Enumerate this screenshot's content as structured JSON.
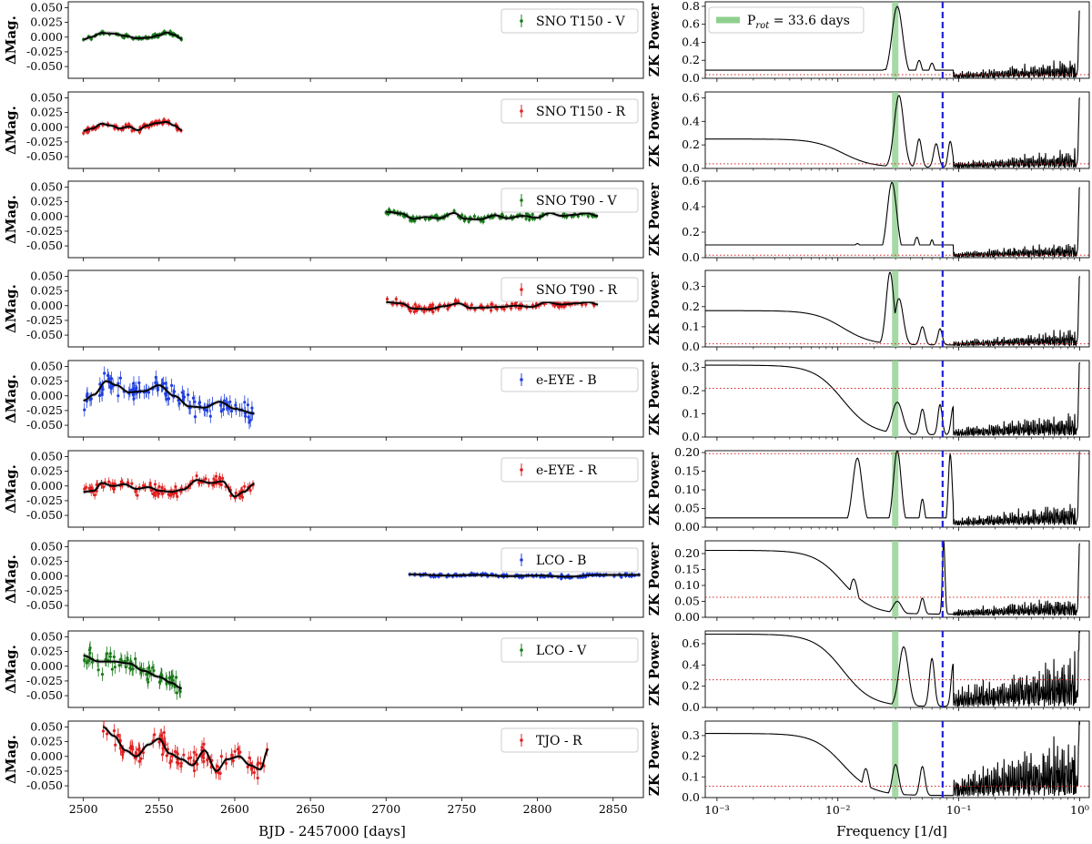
{
  "chart_data": {
    "type": "multi-panel: light curves (scatter with error bars + model line) and ZK periodograms (line)",
    "left_column": {
      "xlabel": "BJD - 2457000 [days]",
      "ylabel": "ΔMag.",
      "xlim": [
        2490,
        2870
      ],
      "ylim": [
        -0.07,
        0.06
      ],
      "xticks": [
        "2500",
        "2550",
        "2600",
        "2650",
        "2700",
        "2750",
        "2800",
        "2850"
      ],
      "yticks": [
        "0.050",
        "0.025",
        "0.000",
        "-0.025",
        "-0.050"
      ],
      "grid": false,
      "panels": [
        {
          "legend": "SNO T150 - V",
          "color": "#1a7a1a",
          "range": [
            2500,
            2565
          ],
          "amp": 0.008,
          "noise": 0.002,
          "model": [
            [
              2500,
              -0.004
            ],
            [
              2505,
              0.0
            ],
            [
              2512,
              0.007
            ],
            [
              2520,
              0.006
            ],
            [
              2528,
              0.002
            ],
            [
              2535,
              -0.002
            ],
            [
              2543,
              -0.001
            ],
            [
              2550,
              0.003
            ],
            [
              2555,
              0.008
            ],
            [
              2560,
              0.004
            ],
            [
              2565,
              -0.003
            ]
          ]
        },
        {
          "legend": "SNO T150 - R",
          "color": "#e02020",
          "range": [
            2500,
            2565
          ],
          "amp": 0.008,
          "noise": 0.003,
          "model": [
            [
              2500,
              -0.006
            ],
            [
              2506,
              -0.002
            ],
            [
              2512,
              0.006
            ],
            [
              2518,
              0.003
            ],
            [
              2524,
              -0.002
            ],
            [
              2530,
              0.001
            ],
            [
              2536,
              -0.005
            ],
            [
              2542,
              0.003
            ],
            [
              2548,
              0.007
            ],
            [
              2555,
              0.009
            ],
            [
              2560,
              0.003
            ],
            [
              2565,
              -0.005
            ]
          ]
        },
        {
          "legend": "SNO T90 - V",
          "color": "#1a7a1a",
          "range": [
            2700,
            2840
          ],
          "amp": 0.006,
          "noise": 0.003,
          "model": [
            [
              2700,
              0.008
            ],
            [
              2710,
              0.005
            ],
            [
              2718,
              -0.004
            ],
            [
              2726,
              -0.001
            ],
            [
              2735,
              -0.003
            ],
            [
              2745,
              0.006
            ],
            [
              2752,
              -0.004
            ],
            [
              2762,
              -0.005
            ],
            [
              2772,
              0.002
            ],
            [
              2780,
              -0.003
            ],
            [
              2790,
              0.001
            ],
            [
              2800,
              -0.002
            ],
            [
              2808,
              0.006
            ],
            [
              2816,
              0.001
            ],
            [
              2825,
              0.003
            ],
            [
              2832,
              0.006
            ],
            [
              2840,
              0.001
            ]
          ]
        },
        {
          "legend": "SNO T90 - R",
          "color": "#e02020",
          "range": [
            2700,
            2840
          ],
          "amp": 0.006,
          "noise": 0.004,
          "model": [
            [
              2700,
              0.006
            ],
            [
              2710,
              0.004
            ],
            [
              2718,
              -0.005
            ],
            [
              2728,
              -0.006
            ],
            [
              2738,
              -0.001
            ],
            [
              2748,
              0.004
            ],
            [
              2756,
              -0.004
            ],
            [
              2766,
              -0.003
            ],
            [
              2776,
              -0.002
            ],
            [
              2786,
              0.0
            ],
            [
              2796,
              -0.002
            ],
            [
              2806,
              0.006
            ],
            [
              2816,
              0.002
            ],
            [
              2826,
              0.004
            ],
            [
              2834,
              0.006
            ],
            [
              2840,
              0.002
            ]
          ]
        },
        {
          "legend": "e-EYE - B",
          "color": "#1f3fe0",
          "range": [
            2500,
            2613
          ],
          "amp": 0.02,
          "noise": 0.012,
          "model": [
            [
              2500,
              -0.008
            ],
            [
              2507,
              0.002
            ],
            [
              2515,
              0.025
            ],
            [
              2522,
              0.018
            ],
            [
              2530,
              0.006
            ],
            [
              2540,
              0.008
            ],
            [
              2550,
              0.018
            ],
            [
              2560,
              0.0
            ],
            [
              2570,
              -0.018
            ],
            [
              2580,
              -0.02
            ],
            [
              2590,
              -0.01
            ],
            [
              2600,
              -0.022
            ],
            [
              2613,
              -0.03
            ]
          ]
        },
        {
          "legend": "e-EYE - R",
          "color": "#e02020",
          "range": [
            2500,
            2613
          ],
          "amp": 0.015,
          "noise": 0.007,
          "model": [
            [
              2500,
              -0.01
            ],
            [
              2507,
              -0.008
            ],
            [
              2512,
              0.005
            ],
            [
              2520,
              0.0
            ],
            [
              2527,
              0.003
            ],
            [
              2535,
              -0.005
            ],
            [
              2543,
              -0.002
            ],
            [
              2550,
              -0.008
            ],
            [
              2558,
              -0.01
            ],
            [
              2566,
              -0.006
            ],
            [
              2575,
              0.01
            ],
            [
              2584,
              0.005
            ],
            [
              2592,
              0.008
            ],
            [
              2600,
              -0.018
            ],
            [
              2606,
              -0.01
            ],
            [
              2613,
              0.004
            ]
          ]
        },
        {
          "legend": "LCO - B",
          "color": "#1f3fe0",
          "range": [
            2715,
            2868
          ],
          "amp": 0.003,
          "noise": 0.002,
          "model": [
            [
              2715,
              0.003
            ],
            [
              2740,
              0.001
            ],
            [
              2760,
              0.002
            ],
            [
              2780,
              0.0
            ],
            [
              2800,
              0.001
            ],
            [
              2820,
              -0.001
            ],
            [
              2840,
              0.002
            ],
            [
              2868,
              0.002
            ]
          ]
        },
        {
          "legend": "LCO - V",
          "color": "#1a7a1a",
          "range": [
            2500,
            2565
          ],
          "amp": 0.02,
          "noise": 0.012,
          "model": [
            [
              2500,
              0.018
            ],
            [
              2510,
              0.008
            ],
            [
              2520,
              0.008
            ],
            [
              2530,
              0.005
            ],
            [
              2540,
              -0.008
            ],
            [
              2550,
              -0.018
            ],
            [
              2558,
              -0.028
            ],
            [
              2565,
              -0.038
            ]
          ]
        },
        {
          "legend": "TJO - R",
          "color": "#e02020",
          "range": [
            2513,
            2622
          ],
          "amp": 0.025,
          "noise": 0.012,
          "model": [
            [
              2513,
              0.05
            ],
            [
              2520,
              0.035
            ],
            [
              2528,
              0.01
            ],
            [
              2535,
              0.0
            ],
            [
              2543,
              0.02
            ],
            [
              2550,
              0.03
            ],
            [
              2557,
              0.005
            ],
            [
              2565,
              -0.005
            ],
            [
              2572,
              -0.015
            ],
            [
              2580,
              0.01
            ],
            [
              2588,
              -0.025
            ],
            [
              2595,
              -0.005
            ],
            [
              2603,
              0.0
            ],
            [
              2610,
              -0.015
            ],
            [
              2617,
              -0.022
            ],
            [
              2622,
              0.012
            ]
          ]
        }
      ]
    },
    "right_column": {
      "xlabel": "Frequency [1/d]",
      "ylabel": "ZK Power",
      "xscale": "log",
      "xlim": [
        0.0008,
        1.2
      ],
      "xticks": [
        "10⁻³",
        "10⁻²",
        "10⁻¹",
        "10⁰"
      ],
      "rotation_period_band": {
        "label": "P",
        "label_sub": "rot",
        "label_rest": " = 33.6 days",
        "frequency": 0.0298,
        "color": "#8fd08f"
      },
      "dashed_line_frequency": 0.0735,
      "dashed_color": "#2222dd",
      "threshold_color": "#d62020",
      "panels": [
        {
          "ylim": [
            0,
            0.85
          ],
          "yticks": [
            "0.0",
            "0.2",
            "0.4",
            "0.6",
            "0.8"
          ],
          "threshold": 0.04,
          "base": 0.09,
          "peaks": [
            [
              0.0245,
              0.08,
              0.22
            ],
            [
              0.031,
              0.78,
              0.25
            ],
            [
              0.047,
              0.18,
              0.12
            ],
            [
              0.06,
              0.15,
              0.12
            ]
          ],
          "noise": 0.2,
          "end": 0.75
        },
        {
          "ylim": [
            0,
            0.65
          ],
          "yticks": [
            "0.0",
            "0.2",
            "0.4",
            "0.6"
          ],
          "threshold": 0.04,
          "base": 0.24,
          "drop": true,
          "peaks": [
            [
              0.032,
              0.61,
              0.22
            ],
            [
              0.047,
              0.24,
              0.12
            ],
            [
              0.065,
              0.2,
              0.12
            ],
            [
              0.085,
              0.22,
              0.1
            ]
          ],
          "noise": 0.15,
          "end": 0.6
        },
        {
          "ylim": [
            0,
            0.6
          ],
          "yticks": [
            "0.0",
            "0.2",
            "0.4",
            "0.6"
          ],
          "threshold": 0.02,
          "base": 0.1,
          "peaks": [
            [
              0.0145,
              0.09,
              0.2
            ],
            [
              0.028,
              0.57,
              0.22
            ],
            [
              0.045,
              0.14,
              0.12
            ],
            [
              0.06,
              0.12,
              0.1
            ]
          ],
          "noise": 0.12,
          "end": 0.55
        },
        {
          "ylim": [
            0,
            0.38
          ],
          "yticks": [
            "0.0",
            "0.1",
            "0.2",
            "0.3"
          ],
          "threshold": 0.015,
          "base": 0.17,
          "drop": true,
          "peaks": [
            [
              0.027,
              0.36,
              0.18
            ],
            [
              0.032,
              0.23,
              0.2
            ],
            [
              0.05,
              0.09,
              0.12
            ],
            [
              0.07,
              0.08,
              0.1
            ]
          ],
          "noise": 0.08,
          "end": 0.35
        },
        {
          "ylim": [
            0,
            0.33
          ],
          "yticks": [
            "0.0",
            "0.1",
            "0.2",
            "0.3"
          ],
          "threshold": 0.21,
          "base": 0.3,
          "drop": true,
          "peaks": [
            [
              0.031,
              0.14,
              0.25
            ],
            [
              0.05,
              0.11,
              0.12
            ],
            [
              0.07,
              0.13,
              0.1
            ],
            [
              0.09,
              0.12,
              0.1
            ]
          ],
          "noise": 0.1,
          "end": 0.32
        },
        {
          "ylim": [
            0,
            0.205
          ],
          "yticks": [
            "0.00",
            "0.05",
            "0.10",
            "0.15",
            "0.20"
          ],
          "threshold": 0.197,
          "base": 0.025,
          "peaks": [
            [
              0.0145,
              0.18,
              0.22
            ],
            [
              0.031,
              0.2,
              0.18
            ],
            [
              0.05,
              0.07,
              0.1
            ],
            [
              0.085,
              0.19,
              0.09
            ]
          ],
          "noise": 0.06,
          "end": 0.2
        },
        {
          "ylim": [
            0,
            0.24
          ],
          "yticks": [
            "0.00",
            "0.05",
            "0.10",
            "0.15",
            "0.20"
          ],
          "threshold": 0.063,
          "base": 0.2,
          "drop": true,
          "peaks": [
            [
              0.0135,
              0.11,
              0.2
            ],
            [
              0.031,
              0.04,
              0.2
            ],
            [
              0.05,
              0.05,
              0.1
            ],
            [
              0.075,
              0.23,
              0.06
            ]
          ],
          "noise": 0.06,
          "end": 0.23
        },
        {
          "ylim": [
            0,
            0.72
          ],
          "yticks": [
            "0.0",
            "0.2",
            "0.4",
            "0.6"
          ],
          "threshold": 0.26,
          "base": 0.68,
          "drop": true,
          "peaks": [
            [
              0.035,
              0.56,
              0.22
            ],
            [
              0.06,
              0.45,
              0.12
            ],
            [
              0.09,
              0.4,
              0.1
            ]
          ],
          "noise": 0.5,
          "end": 0.7
        },
        {
          "ylim": [
            0,
            0.37
          ],
          "yticks": [
            "0.0",
            "0.1",
            "0.2",
            "0.3"
          ],
          "threshold": 0.055,
          "base": 0.3,
          "drop": true,
          "peaks": [
            [
              0.017,
              0.13,
              0.15
            ],
            [
              0.03,
              0.15,
              0.15
            ],
            [
              0.05,
              0.14,
              0.12
            ]
          ],
          "noise": 0.3,
          "end": 0.35
        }
      ]
    }
  }
}
